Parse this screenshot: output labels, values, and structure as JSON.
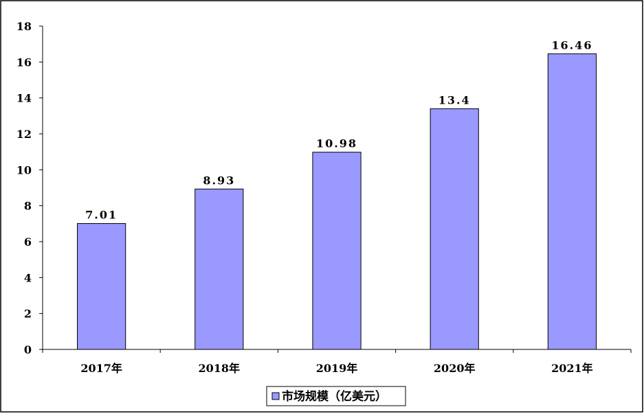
{
  "chart_data": {
    "type": "bar",
    "categories": [
      "2017年",
      "2018年",
      "2019年",
      "2020年",
      "2021年"
    ],
    "series": [
      {
        "name": "市场规模（亿美元）",
        "values": [
          7.01,
          8.93,
          10.98,
          13.4,
          16.46
        ],
        "data_labels": [
          "7.01",
          "8.93",
          "10.98",
          "13.4",
          "16.46"
        ],
        "color": "#9999ff"
      }
    ],
    "ylim": [
      0,
      18
    ],
    "yticks": [
      0,
      2,
      4,
      6,
      8,
      10,
      12,
      14,
      16,
      18
    ],
    "grid": false,
    "legend": "bottom"
  },
  "colors": {
    "bar_fill": "#9999ff",
    "bar_stroke": "#000000",
    "axis": "#000000",
    "frame": "#000000",
    "background": "#ffffff"
  }
}
